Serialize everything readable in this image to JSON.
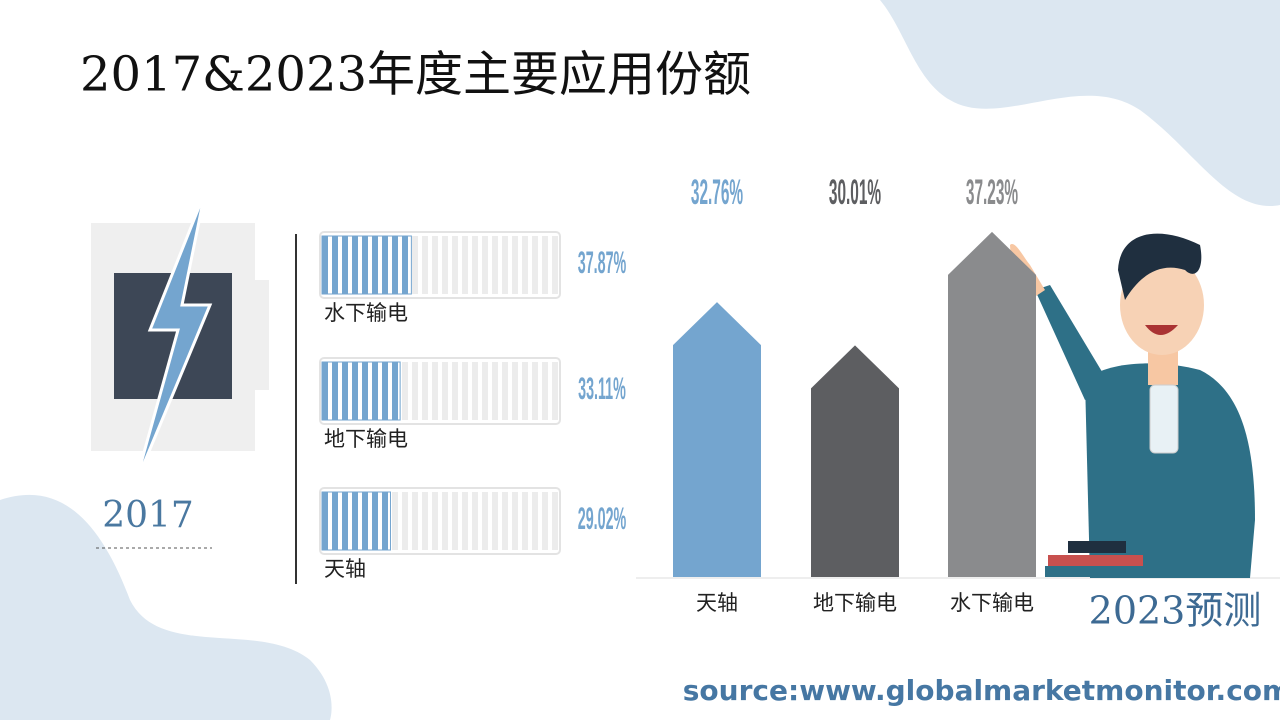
{
  "title": "2017&2023年度主要应用份额",
  "source": "source:www.globalmarketmonitor.com",
  "chart_data": [
    {
      "type": "battery-bar",
      "title": "2017",
      "categories": [
        "水下输电",
        "地下输电",
        "天轴"
      ],
      "values": [
        37.87,
        33.11,
        29.02
      ],
      "value_labels": [
        "37.87%",
        "33.11%",
        "29.02%"
      ],
      "color": "#74a5cf",
      "xlim": [
        0,
        100
      ]
    },
    {
      "type": "arrow-bar",
      "title": "2023预测",
      "categories": [
        "天轴",
        "地下输电",
        "水下输电"
      ],
      "values": [
        32.76,
        30.01,
        37.23
      ],
      "value_labels": [
        "32.76%",
        "30.01%",
        "37.23%"
      ],
      "colors": [
        "#74a5cf",
        "#5d5e61",
        "#8a8b8d"
      ],
      "ylim": [
        18,
        42
      ]
    }
  ]
}
